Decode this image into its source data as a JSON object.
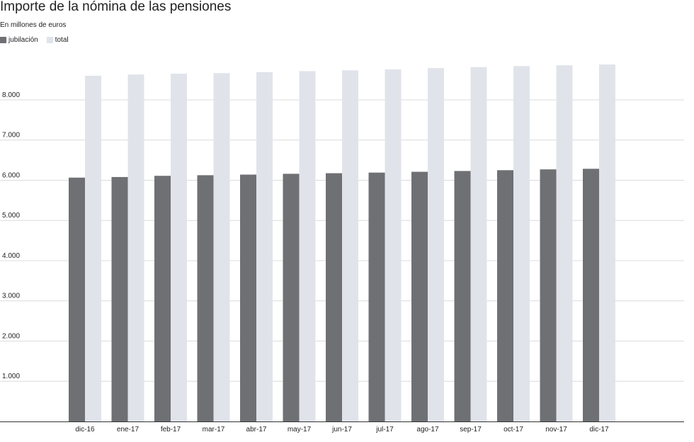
{
  "chart_data": {
    "type": "bar",
    "title": "Importe de la nómina de las pensiones",
    "subtitle": "En millones de euros",
    "categories": [
      "dic-16",
      "ene-17",
      "feb-17",
      "mar-17",
      "abr-17",
      "may-17",
      "jun-17",
      "jul-17",
      "ago-17",
      "sep-17",
      "oct-17",
      "nov-17",
      "dic-17"
    ],
    "series": [
      {
        "name": "jubilación",
        "color": "#6e7074",
        "values": [
          6065,
          6080,
          6110,
          6125,
          6140,
          6160,
          6175,
          6190,
          6210,
          6230,
          6250,
          6270,
          6285
        ]
      },
      {
        "name": "total",
        "color": "#e0e4ea",
        "values": [
          8600,
          8630,
          8650,
          8665,
          8690,
          8715,
          8735,
          8760,
          8790,
          8815,
          8840,
          8860,
          8880
        ]
      }
    ],
    "yticks": [
      1000,
      2000,
      3000,
      4000,
      5000,
      6000,
      7000,
      8000
    ],
    "ytick_labels": [
      "1.000",
      "2.000",
      "3.000",
      "4.000",
      "5.000",
      "6.000",
      "7.000",
      "8.000"
    ],
    "ylim": [
      0,
      8880
    ],
    "xlabel": "",
    "ylabel": "",
    "grid": true,
    "legend_position": "top-left"
  }
}
